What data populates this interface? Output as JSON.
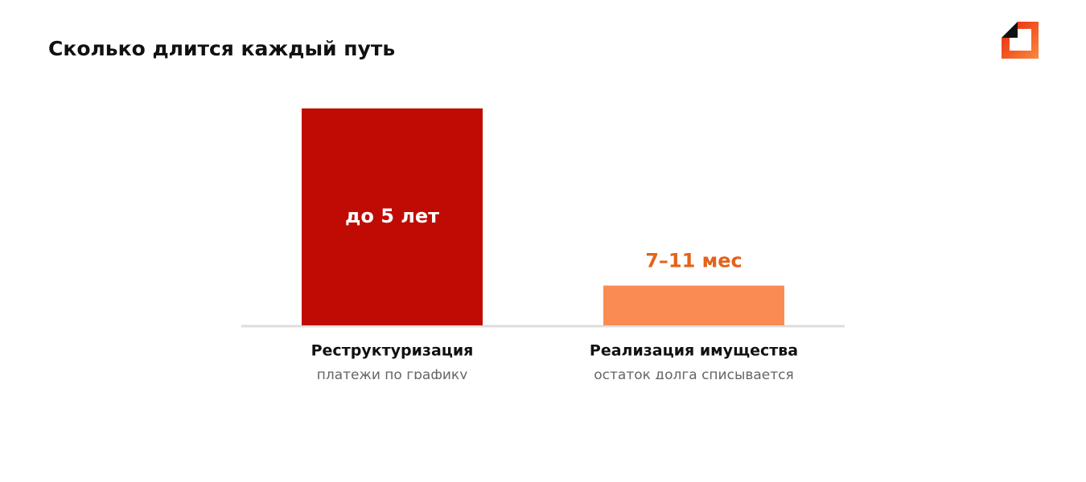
{
  "chart_data": {
    "type": "bar",
    "title": "Сколько длится каждый путь",
    "categories": [
      "Реструктуризация",
      "Реализация имущества"
    ],
    "sublabels": [
      "платежи по графику",
      "остаток долга списывается"
    ],
    "values": [
      60,
      11
    ],
    "value_labels": [
      "до 5 лет",
      "7–11 мес"
    ],
    "colors": [
      "#c00b04",
      "#fa8b52"
    ],
    "value_label_colors": [
      "#ffffff",
      "#e2631c"
    ],
    "ylim": [
      0,
      60
    ]
  }
}
